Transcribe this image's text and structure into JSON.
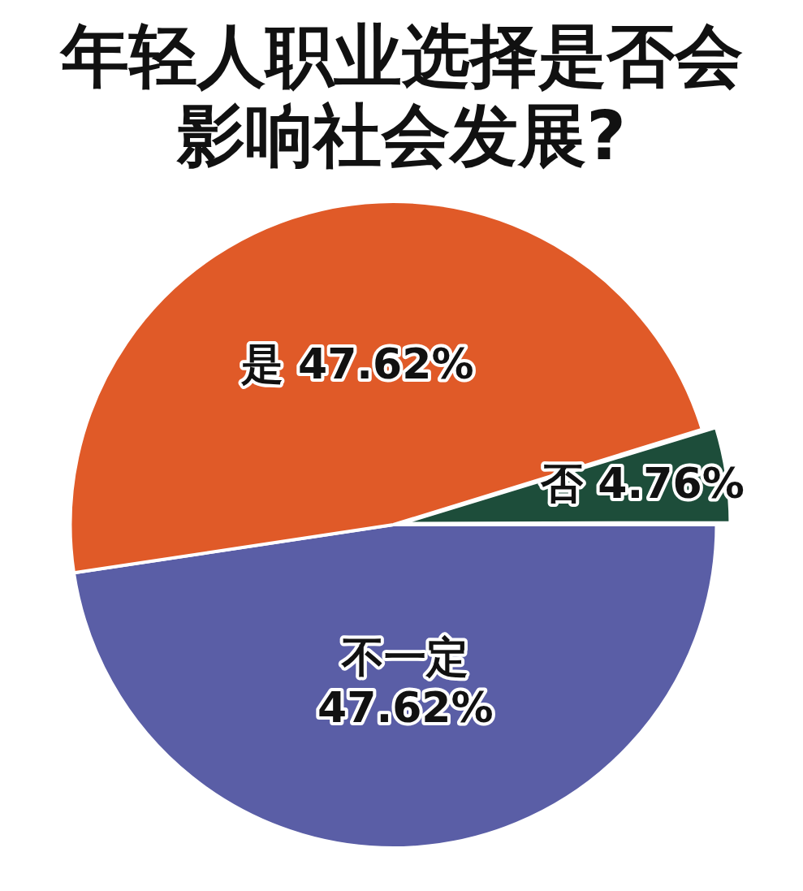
{
  "chart_data": {
    "type": "pie",
    "title": "年轻人职业选择是否会影响社会发展?",
    "categories": [
      "不一定",
      "是",
      "否"
    ],
    "values": [
      47.62,
      47.62,
      4.76
    ],
    "value_labels": [
      "47.62%",
      "47.62%",
      "4.76%"
    ],
    "colors": [
      "#5a5ea6",
      "#e05a28",
      "#1d4d3a"
    ],
    "legend": false
  }
}
